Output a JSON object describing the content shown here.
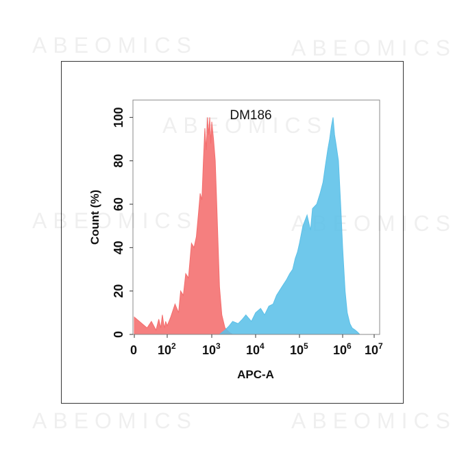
{
  "watermark": "ABEOMICS",
  "chart_data": {
    "type": "area",
    "title": "DM186",
    "xlabel": "APC-A",
    "ylabel": "Count  (%)",
    "xscale": "biexponential",
    "xlim": [
      0,
      10000000
    ],
    "ylim": [
      0,
      108
    ],
    "x_ticks": [
      {
        "value": 0,
        "base": "0",
        "exp": ""
      },
      {
        "value": 100,
        "base": "10",
        "exp": "2"
      },
      {
        "value": 1000,
        "base": "10",
        "exp": "3"
      },
      {
        "value": 10000,
        "base": "10",
        "exp": "4"
      },
      {
        "value": 100000,
        "base": "10",
        "exp": "5"
      },
      {
        "value": 1000000,
        "base": "10",
        "exp": "6"
      },
      {
        "value": 10000000,
        "base": "10",
        "exp": "7"
      }
    ],
    "y_ticks": [
      0,
      20,
      40,
      60,
      80,
      100
    ],
    "grid": false,
    "legend": "none",
    "series": [
      {
        "color": "#f46d6d",
        "x": [
          0,
          5,
          10,
          20,
          30,
          40,
          50,
          60,
          70,
          80,
          100,
          120,
          150,
          180,
          200,
          230,
          260,
          300,
          350,
          400,
          450,
          500,
          550,
          600,
          650,
          700,
          750,
          800,
          850,
          900,
          950,
          1000,
          1100,
          1200,
          1300,
          1400,
          1500,
          1700,
          2000,
          2500,
          3000
        ],
        "y": [
          8,
          3,
          6,
          2,
          7,
          3,
          9,
          5,
          3,
          6,
          4,
          8,
          14,
          10,
          20,
          18,
          28,
          26,
          42,
          40,
          45,
          55,
          65,
          62,
          80,
          95,
          85,
          100,
          92,
          100,
          88,
          98,
          90,
          80,
          60,
          40,
          22,
          9,
          3,
          1,
          0
        ]
      },
      {
        "color": "#5bc0e8",
        "x": [
          1500,
          2000,
          2500,
          3000,
          4000,
          5000,
          6000,
          8000,
          10000,
          13000,
          16000,
          20000,
          25000,
          30000,
          40000,
          50000,
          60000,
          70000,
          80000,
          90000,
          100000,
          120000,
          150000,
          180000,
          200000,
          250000,
          300000,
          350000,
          400000,
          450000,
          500000,
          550000,
          600000,
          650000,
          700000,
          800000,
          900000,
          1000000,
          1200000,
          1400000,
          1700000,
          2000000,
          2500000,
          3000000,
          3500000
        ],
        "y": [
          0,
          2,
          4,
          6,
          5,
          7,
          9,
          6,
          10,
          12,
          9,
          13,
          14,
          18,
          22,
          25,
          28,
          30,
          35,
          38,
          42,
          50,
          55,
          48,
          58,
          60,
          65,
          70,
          78,
          85,
          90,
          96,
          100,
          92,
          88,
          80,
          60,
          40,
          20,
          10,
          5,
          3,
          2,
          1,
          0
        ]
      }
    ]
  }
}
